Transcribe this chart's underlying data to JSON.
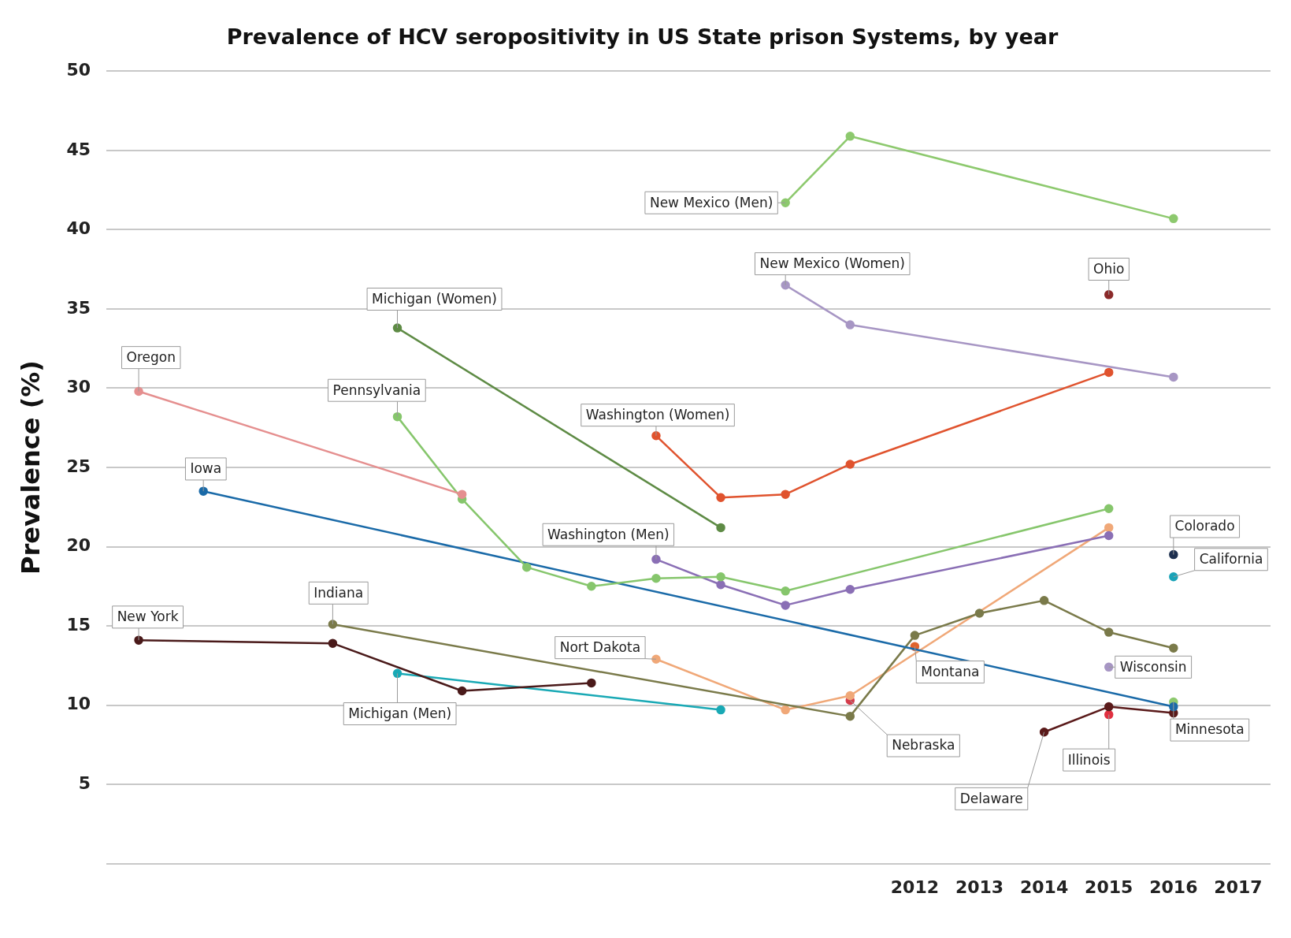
{
  "chart_data": {
    "type": "line",
    "title": "Prevalence of HCV seropositivity in US State prison Systems, by year",
    "ylabel": "Prevalence (%)",
    "xlim": [
      1999.5,
      2017.5
    ],
    "xticks": [
      2012,
      2013,
      2014,
      2015,
      2016,
      2017
    ],
    "ylim": [
      0,
      50
    ],
    "yticks": [
      {
        "value": 0,
        "label": null
      },
      5,
      10,
      15,
      20,
      25,
      30,
      35,
      40,
      45,
      50
    ],
    "grid": "y",
    "legend": false,
    "marker": "circle",
    "line_style": "solid",
    "series": [
      {
        "name": "New Mexico (Men)",
        "color": "#8dc96e",
        "x": [
          2010,
          2011,
          2016
        ],
        "values": [
          41.7,
          45.9,
          40.7
        ]
      },
      {
        "name": "New Mexico (Women)",
        "color": "#a796c4",
        "x": [
          2010,
          2011,
          2016
        ],
        "values": [
          36.5,
          34.0,
          30.7
        ]
      },
      {
        "name": "Ohio",
        "color": "#8b2a2a",
        "x": [
          2015
        ],
        "values": [
          35.9
        ]
      },
      {
        "name": "Michigan (Women)",
        "color": "#5e8b45",
        "x": [
          2004,
          2009
        ],
        "values": [
          33.8,
          21.2
        ]
      },
      {
        "name": "Oregon",
        "color": "#e58f8f",
        "x": [
          2000,
          2005
        ],
        "values": [
          29.8,
          23.3
        ]
      },
      {
        "name": "Pennsylvania",
        "color": "#86c66c",
        "x": [
          2004,
          2005,
          2006,
          2007,
          2008,
          2009,
          2010,
          2015
        ],
        "values": [
          28.2,
          23.0,
          18.7,
          17.5,
          18.0,
          18.1,
          17.2,
          22.4
        ]
      },
      {
        "name": "Washington (Women)",
        "color": "#e0532e",
        "x": [
          2008,
          2009,
          2010,
          2011,
          2015
        ],
        "values": [
          27.0,
          23.1,
          23.3,
          25.2,
          31.0
        ]
      },
      {
        "name": "Iowa",
        "color": "#1a6aa8",
        "x": [
          2001,
          2016
        ],
        "values": [
          23.5,
          9.9
        ]
      },
      {
        "name": "Washington (Men)",
        "color": "#8a6fb5",
        "x": [
          2008,
          2009,
          2010,
          2011,
          2015
        ],
        "values": [
          19.2,
          17.6,
          16.3,
          17.3,
          20.7
        ]
      },
      {
        "name": "Colorado",
        "color": "#1e3050",
        "x": [
          2016
        ],
        "values": [
          19.5
        ]
      },
      {
        "name": "California",
        "color": "#1aa3b8",
        "x": [
          2016
        ],
        "values": [
          18.1
        ]
      },
      {
        "name": "Indiana",
        "color": "#7a7a4a",
        "x": [
          2003,
          2011,
          2012,
          2013,
          2014,
          2015,
          2016
        ],
        "values": [
          15.1,
          9.3,
          14.4,
          15.8,
          16.6,
          14.6,
          13.6
        ]
      },
      {
        "name": "New York",
        "color": "#4a1a1a",
        "x": [
          2000,
          2003,
          2005,
          2007
        ],
        "values": [
          14.1,
          13.9,
          10.9,
          11.4
        ]
      },
      {
        "name": "Michigan (Men)",
        "color": "#19a9b5",
        "x": [
          2004,
          2009
        ],
        "values": [
          12.0,
          9.7
        ]
      },
      {
        "name": "Nort Dakota",
        "color": "#f0a878",
        "x": [
          2008,
          2010,
          2011,
          2015
        ],
        "values": [
          12.9,
          9.7,
          10.6,
          21.2
        ]
      },
      {
        "name": "Montana",
        "color": "#e0642e",
        "x": [
          2012
        ],
        "values": [
          13.7
        ]
      },
      {
        "name": "Nebraska",
        "color": "#d43c4c",
        "x": [
          2011
        ],
        "values": [
          10.3
        ]
      },
      {
        "name": "Wisconsin",
        "color": "#a796c4",
        "x": [
          2015
        ],
        "values": [
          12.4
        ]
      },
      {
        "name": "Delaware",
        "color": "#5a1a1a",
        "x": [
          2014,
          2015,
          2016
        ],
        "values": [
          8.3,
          9.9,
          9.5
        ]
      },
      {
        "name": "Illinois",
        "color": "#e03040",
        "x": [
          2015
        ],
        "values": [
          9.4
        ]
      },
      {
        "name": "Minnesota",
        "color": "#8dc96e",
        "x": [
          2016
        ],
        "values": [
          10.2
        ]
      }
    ]
  }
}
